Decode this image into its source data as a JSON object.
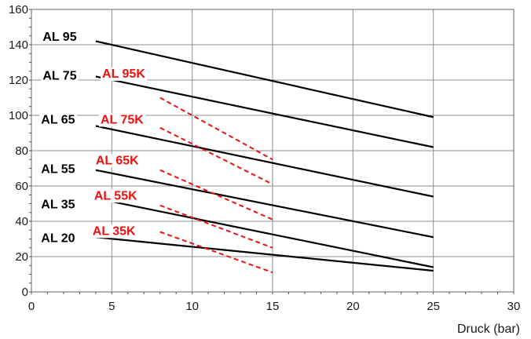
{
  "chart_data": {
    "type": "line",
    "title": "",
    "xlabel": "Druck (bar)",
    "ylabel": "",
    "xlim": [
      0,
      30
    ],
    "ylim": [
      0,
      160
    ],
    "xticks": [
      0,
      5,
      10,
      15,
      20,
      25,
      30
    ],
    "yticks": [
      0,
      20,
      40,
      60,
      80,
      100,
      120,
      140,
      160
    ],
    "grid": true,
    "colors": {
      "standard": "#000000",
      "k_series": "#ee1111"
    },
    "series": [
      {
        "name": "AL 95",
        "style": "solid",
        "x": [
          4,
          25
        ],
        "y": [
          142,
          99
        ]
      },
      {
        "name": "AL 75",
        "style": "solid",
        "x": [
          4,
          25
        ],
        "y": [
          122,
          82
        ]
      },
      {
        "name": "AL 65",
        "style": "solid",
        "x": [
          4,
          25
        ],
        "y": [
          94,
          54
        ]
      },
      {
        "name": "AL 55",
        "style": "solid",
        "x": [
          4,
          25
        ],
        "y": [
          69,
          31
        ]
      },
      {
        "name": "AL 35",
        "style": "solid",
        "x": [
          4,
          25
        ],
        "y": [
          53,
          14
        ]
      },
      {
        "name": "AL 20",
        "style": "solid",
        "x": [
          4,
          25
        ],
        "y": [
          31,
          12
        ]
      },
      {
        "name": "AL  95K",
        "style": "dashed",
        "x": [
          8,
          15
        ],
        "y": [
          110,
          75
        ]
      },
      {
        "name": "AL 75K",
        "style": "dashed",
        "x": [
          8,
          15
        ],
        "y": [
          93,
          61
        ]
      },
      {
        "name": "AL  65K",
        "style": "dashed",
        "x": [
          8,
          15
        ],
        "y": [
          69,
          41
        ]
      },
      {
        "name": "AL  55K",
        "style": "dashed",
        "x": [
          8,
          15
        ],
        "y": [
          49,
          25
        ]
      },
      {
        "name": "AL  35K",
        "style": "dashed",
        "x": [
          8,
          15
        ],
        "y": [
          34,
          11
        ]
      }
    ],
    "labels": [
      {
        "text": "AL 95",
        "kind": "black",
        "x": 0.7,
        "y": 145
      },
      {
        "text": "AL 75",
        "kind": "black",
        "x": 0.7,
        "y": 123
      },
      {
        "text": "AL 65",
        "kind": "black",
        "x": 0.6,
        "y": 98
      },
      {
        "text": "AL 55",
        "kind": "black",
        "x": 0.6,
        "y": 70
      },
      {
        "text": "AL 35",
        "kind": "black",
        "x": 0.6,
        "y": 50
      },
      {
        "text": "AL 20",
        "kind": "black",
        "x": 0.6,
        "y": 31
      },
      {
        "text": "AL  95K",
        "kind": "red",
        "x": 4.4,
        "y": 124
      },
      {
        "text": "AL 75K",
        "kind": "red",
        "x": 4.3,
        "y": 98
      },
      {
        "text": "AL  65K",
        "kind": "red",
        "x": 4.0,
        "y": 75
      },
      {
        "text": "AL  55K",
        "kind": "red",
        "x": 3.9,
        "y": 55
      },
      {
        "text": "AL  35K",
        "kind": "red",
        "x": 3.8,
        "y": 35
      }
    ]
  }
}
